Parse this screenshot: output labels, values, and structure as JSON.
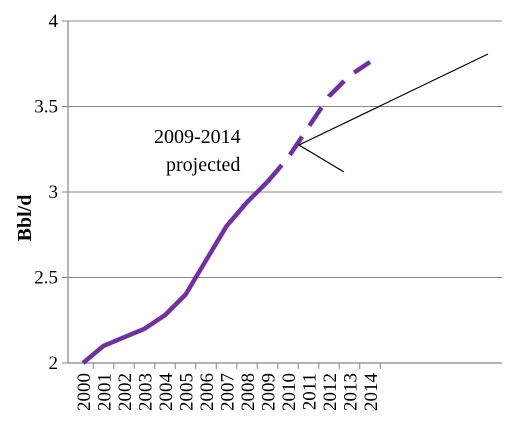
{
  "chart_data": {
    "type": "line",
    "title": "",
    "xlabel": "",
    "ylabel": "Bbl/d",
    "ylim": [
      2,
      4
    ],
    "yticks": [
      "2",
      "2.5",
      "3",
      "3.5",
      "4"
    ],
    "ytick_values": [
      2,
      2.5,
      3,
      3.5,
      4
    ],
    "categories": [
      "2000",
      "2001",
      "2002",
      "2003",
      "2004",
      "2005",
      "2006",
      "2007",
      "2008",
      "2009",
      "2010",
      "2011",
      "2012",
      "2013",
      "2014"
    ],
    "series": [
      {
        "color": "#7030A0",
        "style": "solid",
        "x": [
          "2000",
          "2001",
          "2002",
          "2003",
          "2004",
          "2005",
          "2006",
          "2007",
          "2008",
          "2009"
        ],
        "values": [
          2.0,
          2.1,
          2.15,
          2.2,
          2.28,
          2.4,
          2.6,
          2.8,
          2.94,
          3.06
        ]
      },
      {
        "color": "#7030A0",
        "style": "dashed",
        "x": [
          "2009",
          "2010",
          "2011",
          "2012",
          "2013",
          "2014"
        ],
        "values": [
          3.06,
          3.2,
          3.38,
          3.56,
          3.68,
          3.76
        ]
      }
    ],
    "annotations": [
      {
        "lines": [
          "2009-2014",
          "projected"
        ]
      }
    ],
    "grid": {
      "y": true,
      "x": false
    }
  }
}
